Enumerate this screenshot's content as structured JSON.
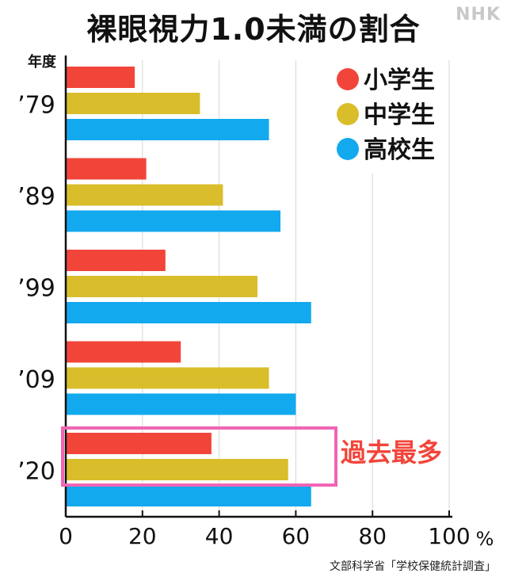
{
  "brand": "NHK",
  "source": "文部科学省「学校保健統計調査」",
  "colors": {
    "elementary": "#f2453a",
    "junior_high": "#d9bd2b",
    "high_school": "#12a9ee",
    "highlight": "#f065b4",
    "annotation": "#f2453a"
  },
  "chart_data": {
    "type": "bar",
    "orientation": "horizontal",
    "title": "裸眼視力1.0未満の割合",
    "category_axis_label": "年度",
    "categories": [
      "’79",
      "’89",
      "’99",
      "’09",
      "’20"
    ],
    "series": [
      {
        "name": "小学生",
        "values": [
          18,
          21,
          26,
          30,
          38
        ]
      },
      {
        "name": "中学生",
        "values": [
          35,
          41,
          50,
          53,
          58
        ]
      },
      {
        "name": "高校生",
        "values": [
          53,
          56,
          64,
          60,
          64
        ]
      }
    ],
    "x_ticks": [
      "0",
      "20",
      "40",
      "60",
      "80",
      "100"
    ],
    "x_unit": "%",
    "xlim": [
      0,
      100
    ],
    "grid": true,
    "legend_position": "top-right",
    "annotation": {
      "text": "過去最多",
      "category": "’20"
    }
  }
}
